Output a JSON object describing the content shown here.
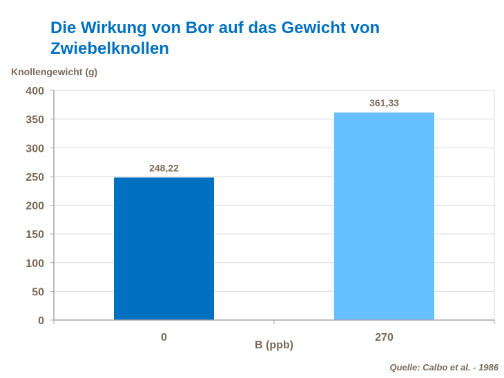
{
  "chart_data": {
    "type": "bar",
    "title": "Die Wirkung von Bor auf das Gewicht von Zwiebelknollen",
    "xlabel": "B (ppb)",
    "ylabel": "Knollengewicht  (g)",
    "categories": [
      "0",
      "270"
    ],
    "values": [
      248.22,
      361.33
    ],
    "data_labels": [
      "248,22",
      "361,33"
    ],
    "bar_colors": [
      "#0070c0",
      "#66bfff"
    ],
    "ylim": [
      0,
      400
    ],
    "yticks": [
      0,
      50,
      100,
      150,
      200,
      250,
      300,
      350,
      400
    ],
    "grid": true,
    "legend": "none"
  },
  "source": "Quelle: Calbo et al. - 1986",
  "colors": {
    "title": "#0070c0",
    "text": "#7a6a58",
    "grid": "#d9d9d9",
    "axis": "#a6a6a6"
  }
}
